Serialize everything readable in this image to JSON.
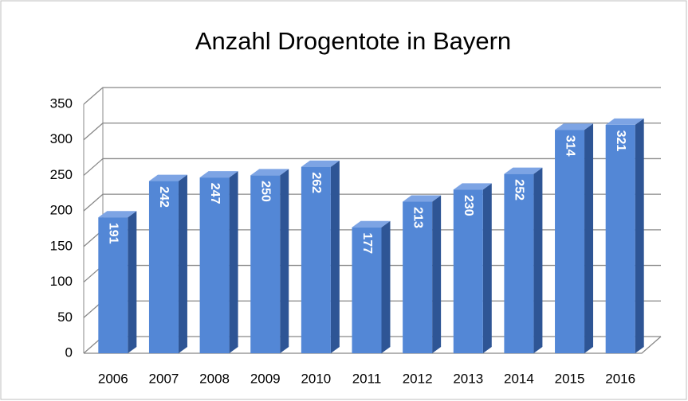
{
  "chart_data": {
    "type": "bar3d",
    "title": "Anzahl Drogentote in Bayern",
    "categories": [
      "2006",
      "2007",
      "2008",
      "2009",
      "2010",
      "2011",
      "2012",
      "2013",
      "2014",
      "2015",
      "2016"
    ],
    "values": [
      191,
      242,
      247,
      250,
      262,
      177,
      213,
      230,
      252,
      314,
      321
    ],
    "color": "#5387d6",
    "ylim": [
      0,
      350
    ],
    "yticks": [
      0,
      50,
      100,
      150,
      200,
      250,
      300,
      350
    ],
    "grid": true
  }
}
